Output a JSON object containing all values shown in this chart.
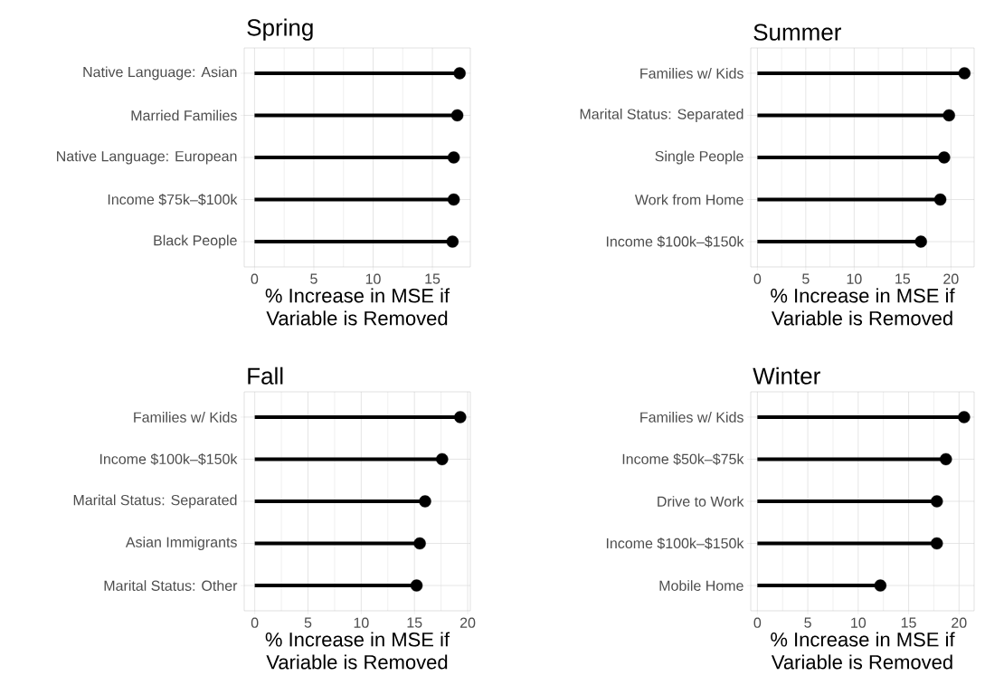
{
  "chart_data": [
    {
      "type": "lollipop",
      "orientation": "horizontal",
      "title": "Spring",
      "categories": [
        "Native Language: Asian",
        "Married Families",
        "Native Language: European",
        "Income $75k–$100k",
        "Black People"
      ],
      "values": [
        17.3,
        17.1,
        16.8,
        16.8,
        16.7
      ],
      "color": "#000000",
      "marker": "circle",
      "xlabel": "% Increase in MSE if Variable is Removed",
      "xlim": [
        -0.87,
        18.2
      ],
      "xticks": [
        0,
        5,
        10,
        15
      ],
      "grid": true
    },
    {
      "type": "lollipop",
      "orientation": "horizontal",
      "title": "Summer",
      "categories": [
        "Families w/ Kids",
        "Marital Status: Separated",
        "Single People",
        "Work from Home",
        "Income $100k–$150k"
      ],
      "values": [
        21.4,
        19.8,
        19.3,
        18.9,
        16.9
      ],
      "color": "#000000",
      "marker": "circle",
      "xlabel": "% Increase in MSE if Variable is Removed",
      "xlim": [
        -0.69,
        22.4
      ],
      "xticks": [
        0,
        5,
        10,
        15,
        20
      ],
      "grid": true
    },
    {
      "type": "lollipop",
      "orientation": "horizontal",
      "title": "Fall",
      "categories": [
        "Families w/ Kids",
        "Income $100k–$150k",
        "Marital Status: Separated",
        "Asian Immigrants",
        "Marital Status: Other"
      ],
      "values": [
        19.3,
        17.6,
        16.0,
        15.5,
        15.2
      ],
      "color": "#000000",
      "marker": "circle",
      "xlabel": "% Increase in MSE if Variable is Removed",
      "xlim": [
        -0.99,
        20.25
      ],
      "xticks": [
        0,
        5,
        10,
        15,
        20
      ],
      "grid": true
    },
    {
      "type": "lollipop",
      "orientation": "horizontal",
      "title": "Winter",
      "categories": [
        "Families w/ Kids",
        "Income $50k–$75k",
        "Drive to Work",
        "Income $100k–$150k",
        "Mobile Home"
      ],
      "values": [
        20.5,
        18.7,
        17.8,
        17.8,
        12.2
      ],
      "color": "#000000",
      "marker": "circle",
      "xlabel": "% Increase in MSE if Variable is Removed",
      "xlim": [
        -0.66,
        21.5
      ],
      "xticks": [
        0,
        5,
        10,
        15,
        20
      ],
      "grid": true
    }
  ]
}
